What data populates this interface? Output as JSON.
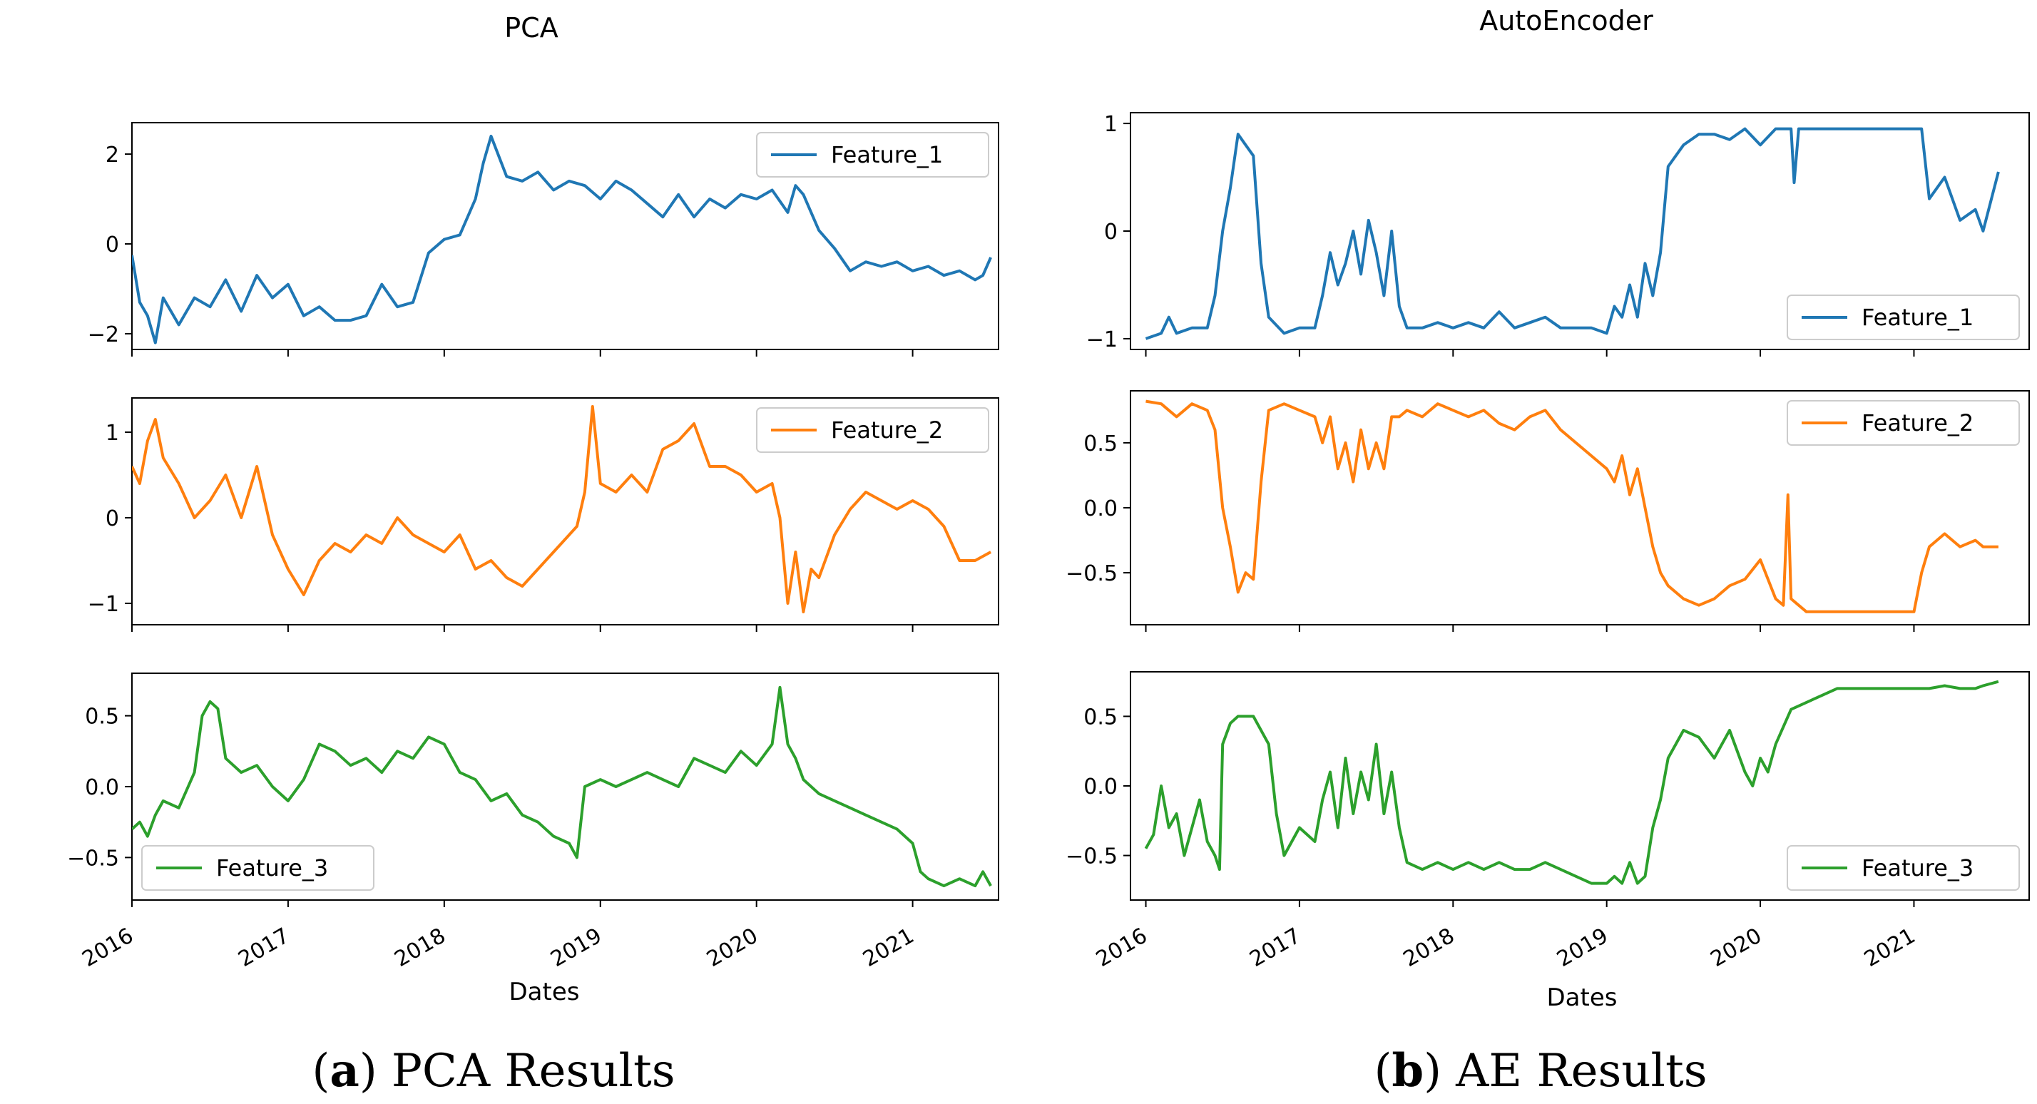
{
  "chart_data": [
    {
      "type": "line",
      "title": "PCA",
      "caption_letter": "a",
      "caption_text": "PCA Results",
      "xlabel": "Dates",
      "x_ticks": [
        "2016",
        "2017",
        "2018",
        "2019",
        "2020",
        "2021"
      ],
      "xlim": [
        2016.0,
        2021.55
      ],
      "subplots": [
        {
          "name": "Feature_1",
          "color": "#1f77b4",
          "ylim": [
            -2.35,
            2.7
          ],
          "yticks": [
            -2,
            0,
            2
          ],
          "ytick_labels": [
            "−2",
            "0",
            "2"
          ],
          "legend_loc": "upper right",
          "x": [
            2016.0,
            2016.05,
            2016.1,
            2016.15,
            2016.2,
            2016.3,
            2016.4,
            2016.5,
            2016.6,
            2016.7,
            2016.8,
            2016.9,
            2017.0,
            2017.1,
            2017.2,
            2017.3,
            2017.4,
            2017.5,
            2017.6,
            2017.7,
            2017.8,
            2017.9,
            2018.0,
            2018.1,
            2018.2,
            2018.25,
            2018.3,
            2018.4,
            2018.5,
            2018.6,
            2018.7,
            2018.8,
            2018.9,
            2019.0,
            2019.1,
            2019.2,
            2019.3,
            2019.4,
            2019.5,
            2019.6,
            2019.7,
            2019.8,
            2019.9,
            2020.0,
            2020.1,
            2020.2,
            2020.25,
            2020.3,
            2020.4,
            2020.5,
            2020.6,
            2020.7,
            2020.8,
            2020.9,
            2021.0,
            2021.1,
            2021.2,
            2021.3,
            2021.4,
            2021.45,
            2021.5
          ],
          "y": [
            -0.25,
            -1.3,
            -1.6,
            -2.2,
            -1.2,
            -1.8,
            -1.2,
            -1.4,
            -0.8,
            -1.5,
            -0.7,
            -1.2,
            -0.9,
            -1.6,
            -1.4,
            -1.7,
            -1.7,
            -1.6,
            -0.9,
            -1.4,
            -1.3,
            -0.2,
            0.1,
            0.2,
            1.0,
            1.8,
            2.4,
            1.5,
            1.4,
            1.6,
            1.2,
            1.4,
            1.3,
            1.0,
            1.4,
            1.2,
            0.9,
            0.6,
            1.1,
            0.6,
            1.0,
            0.8,
            1.1,
            1.0,
            1.2,
            0.7,
            1.3,
            1.1,
            0.3,
            -0.1,
            -0.6,
            -0.4,
            -0.5,
            -0.4,
            -0.6,
            -0.5,
            -0.7,
            -0.6,
            -0.8,
            -0.7,
            -0.3
          ]
        },
        {
          "name": "Feature_2",
          "color": "#ff7f0e",
          "ylim": [
            -1.25,
            1.4
          ],
          "yticks": [
            -1,
            0,
            1
          ],
          "ytick_labels": [
            "−1",
            "0",
            "1"
          ],
          "legend_loc": "upper right",
          "x": [
            2016.0,
            2016.05,
            2016.1,
            2016.15,
            2016.2,
            2016.3,
            2016.4,
            2016.5,
            2016.6,
            2016.7,
            2016.8,
            2016.9,
            2017.0,
            2017.1,
            2017.2,
            2017.3,
            2017.4,
            2017.5,
            2017.6,
            2017.7,
            2017.8,
            2017.9,
            2018.0,
            2018.1,
            2018.2,
            2018.3,
            2018.4,
            2018.5,
            2018.6,
            2018.7,
            2018.8,
            2018.85,
            2018.9,
            2018.95,
            2019.0,
            2019.1,
            2019.2,
            2019.3,
            2019.4,
            2019.5,
            2019.6,
            2019.7,
            2019.8,
            2019.9,
            2020.0,
            2020.1,
            2020.15,
            2020.2,
            2020.25,
            2020.3,
            2020.35,
            2020.4,
            2020.5,
            2020.6,
            2020.7,
            2020.8,
            2020.9,
            2021.0,
            2021.1,
            2021.2,
            2021.3,
            2021.4,
            2021.5
          ],
          "y": [
            0.6,
            0.4,
            0.9,
            1.15,
            0.7,
            0.4,
            0.0,
            0.2,
            0.5,
            0.0,
            0.6,
            -0.2,
            -0.6,
            -0.9,
            -0.5,
            -0.3,
            -0.4,
            -0.2,
            -0.3,
            0.0,
            -0.2,
            -0.3,
            -0.4,
            -0.2,
            -0.6,
            -0.5,
            -0.7,
            -0.8,
            -0.6,
            -0.4,
            -0.2,
            -0.1,
            0.3,
            1.3,
            0.4,
            0.3,
            0.5,
            0.3,
            0.8,
            0.9,
            1.1,
            0.6,
            0.6,
            0.5,
            0.3,
            0.4,
            0.0,
            -1.0,
            -0.4,
            -1.1,
            -0.6,
            -0.7,
            -0.2,
            0.1,
            0.3,
            0.2,
            0.1,
            0.2,
            0.1,
            -0.1,
            -0.5,
            -0.5,
            -0.4
          ]
        },
        {
          "name": "Feature_3",
          "color": "#2ca02c",
          "ylim": [
            -0.8,
            0.8
          ],
          "yticks": [
            -0.5,
            0.0,
            0.5
          ],
          "ytick_labels": [
            "−0.5",
            "0.0",
            "0.5"
          ],
          "legend_loc": "lower left",
          "x": [
            2016.0,
            2016.05,
            2016.1,
            2016.15,
            2016.2,
            2016.3,
            2016.4,
            2016.45,
            2016.5,
            2016.55,
            2016.6,
            2016.7,
            2016.8,
            2016.9,
            2017.0,
            2017.1,
            2017.2,
            2017.3,
            2017.4,
            2017.5,
            2017.6,
            2017.7,
            2017.8,
            2017.9,
            2018.0,
            2018.1,
            2018.2,
            2018.3,
            2018.4,
            2018.5,
            2018.6,
            2018.7,
            2018.8,
            2018.85,
            2018.9,
            2019.0,
            2019.1,
            2019.2,
            2019.3,
            2019.4,
            2019.5,
            2019.6,
            2019.7,
            2019.8,
            2019.9,
            2020.0,
            2020.1,
            2020.15,
            2020.2,
            2020.25,
            2020.3,
            2020.4,
            2020.5,
            2020.6,
            2020.7,
            2020.8,
            2020.9,
            2021.0,
            2021.05,
            2021.1,
            2021.2,
            2021.3,
            2021.4,
            2021.45,
            2021.5
          ],
          "y": [
            -0.3,
            -0.25,
            -0.35,
            -0.2,
            -0.1,
            -0.15,
            0.1,
            0.5,
            0.6,
            0.55,
            0.2,
            0.1,
            0.15,
            0.0,
            -0.1,
            0.05,
            0.3,
            0.25,
            0.15,
            0.2,
            0.1,
            0.25,
            0.2,
            0.35,
            0.3,
            0.1,
            0.05,
            -0.1,
            -0.05,
            -0.2,
            -0.25,
            -0.35,
            -0.4,
            -0.5,
            0.0,
            0.05,
            0.0,
            0.05,
            0.1,
            0.05,
            0.0,
            0.2,
            0.15,
            0.1,
            0.25,
            0.15,
            0.3,
            0.7,
            0.3,
            0.2,
            0.05,
            -0.05,
            -0.1,
            -0.15,
            -0.2,
            -0.25,
            -0.3,
            -0.4,
            -0.6,
            -0.65,
            -0.7,
            -0.65,
            -0.7,
            -0.6,
            -0.7
          ]
        }
      ]
    },
    {
      "type": "line",
      "title": "AutoEncoder",
      "caption_letter": "b",
      "caption_text": "AE Results",
      "xlabel": "Dates",
      "x_ticks": [
        "2016",
        "2017",
        "2018",
        "2019",
        "2020",
        "2021"
      ],
      "xlim": [
        2015.9,
        2021.75
      ],
      "subplots": [
        {
          "name": "Feature_1",
          "color": "#1f77b4",
          "ylim": [
            -1.1,
            1.1
          ],
          "yticks": [
            -1,
            0,
            1
          ],
          "ytick_labels": [
            "−1",
            "0",
            "1"
          ],
          "legend_loc": "lower right",
          "x": [
            2016.0,
            2016.1,
            2016.15,
            2016.2,
            2016.3,
            2016.4,
            2016.45,
            2016.5,
            2016.55,
            2016.6,
            2016.65,
            2016.7,
            2016.75,
            2016.8,
            2016.9,
            2017.0,
            2017.1,
            2017.15,
            2017.2,
            2017.25,
            2017.3,
            2017.35,
            2017.4,
            2017.45,
            2017.5,
            2017.55,
            2017.6,
            2017.65,
            2017.7,
            2017.8,
            2017.9,
            2018.0,
            2018.1,
            2018.2,
            2018.3,
            2018.4,
            2018.5,
            2018.6,
            2018.7,
            2018.8,
            2018.9,
            2019.0,
            2019.05,
            2019.1,
            2019.15,
            2019.2,
            2019.25,
            2019.3,
            2019.35,
            2019.4,
            2019.5,
            2019.6,
            2019.7,
            2019.8,
            2019.9,
            2020.0,
            2020.1,
            2020.2,
            2020.22,
            2020.25,
            2020.3,
            2020.4,
            2020.5,
            2020.6,
            2020.7,
            2020.8,
            2020.9,
            2021.0,
            2021.05,
            2021.1,
            2021.2,
            2021.3,
            2021.4,
            2021.45,
            2021.55
          ],
          "y": [
            -1.0,
            -0.95,
            -0.8,
            -0.95,
            -0.9,
            -0.9,
            -0.6,
            0.0,
            0.4,
            0.9,
            0.8,
            0.7,
            -0.3,
            -0.8,
            -0.95,
            -0.9,
            -0.9,
            -0.6,
            -0.2,
            -0.5,
            -0.3,
            0.0,
            -0.4,
            0.1,
            -0.2,
            -0.6,
            0.0,
            -0.7,
            -0.9,
            -0.9,
            -0.85,
            -0.9,
            -0.85,
            -0.9,
            -0.75,
            -0.9,
            -0.85,
            -0.8,
            -0.9,
            -0.9,
            -0.9,
            -0.95,
            -0.7,
            -0.8,
            -0.5,
            -0.8,
            -0.3,
            -0.6,
            -0.2,
            0.6,
            0.8,
            0.9,
            0.9,
            0.85,
            0.95,
            0.8,
            0.95,
            0.95,
            0.45,
            0.95,
            0.95,
            0.95,
            0.95,
            0.95,
            0.95,
            0.95,
            0.95,
            0.95,
            0.95,
            0.3,
            0.5,
            0.1,
            0.2,
            0.0,
            0.55
          ]
        },
        {
          "name": "Feature_2",
          "color": "#ff7f0e",
          "ylim": [
            -0.9,
            0.9
          ],
          "yticks": [
            -0.5,
            0.0,
            0.5
          ],
          "ytick_labels": [
            "−0.5",
            "0.0",
            "0.5"
          ],
          "legend_loc": "upper right",
          "x": [
            2016.0,
            2016.1,
            2016.15,
            2016.2,
            2016.3,
            2016.4,
            2016.45,
            2016.5,
            2016.55,
            2016.6,
            2016.65,
            2016.7,
            2016.75,
            2016.8,
            2016.9,
            2017.0,
            2017.1,
            2017.15,
            2017.2,
            2017.25,
            2017.3,
            2017.35,
            2017.4,
            2017.45,
            2017.5,
            2017.55,
            2017.6,
            2017.65,
            2017.7,
            2017.8,
            2017.9,
            2018.0,
            2018.1,
            2018.2,
            2018.3,
            2018.4,
            2018.5,
            2018.6,
            2018.7,
            2018.8,
            2018.9,
            2019.0,
            2019.05,
            2019.1,
            2019.15,
            2019.2,
            2019.25,
            2019.3,
            2019.35,
            2019.4,
            2019.5,
            2019.6,
            2019.7,
            2019.8,
            2019.9,
            2020.0,
            2020.1,
            2020.15,
            2020.18,
            2020.2,
            2020.25,
            2020.3,
            2020.4,
            2020.5,
            2020.6,
            2020.7,
            2020.8,
            2020.9,
            2021.0,
            2021.05,
            2021.1,
            2021.2,
            2021.3,
            2021.4,
            2021.45,
            2021.55
          ],
          "y": [
            0.82,
            0.8,
            0.75,
            0.7,
            0.8,
            0.75,
            0.6,
            0.0,
            -0.3,
            -0.65,
            -0.5,
            -0.55,
            0.2,
            0.75,
            0.8,
            0.75,
            0.7,
            0.5,
            0.7,
            0.3,
            0.5,
            0.2,
            0.6,
            0.3,
            0.5,
            0.3,
            0.7,
            0.7,
            0.75,
            0.7,
            0.8,
            0.75,
            0.7,
            0.75,
            0.65,
            0.6,
            0.7,
            0.75,
            0.6,
            0.5,
            0.4,
            0.3,
            0.2,
            0.4,
            0.1,
            0.3,
            0.0,
            -0.3,
            -0.5,
            -0.6,
            -0.7,
            -0.75,
            -0.7,
            -0.6,
            -0.55,
            -0.4,
            -0.7,
            -0.75,
            0.1,
            -0.7,
            -0.75,
            -0.8,
            -0.8,
            -0.8,
            -0.8,
            -0.8,
            -0.8,
            -0.8,
            -0.8,
            -0.5,
            -0.3,
            -0.2,
            -0.3,
            -0.25,
            -0.3,
            -0.3
          ]
        },
        {
          "name": "Feature_3",
          "color": "#2ca02c",
          "ylim": [
            -0.82,
            0.82
          ],
          "yticks": [
            -0.5,
            0.0,
            0.5
          ],
          "ytick_labels": [
            "−0.5",
            "0.0",
            "0.5"
          ],
          "legend_loc": "lower right",
          "x": [
            2016.0,
            2016.05,
            2016.1,
            2016.15,
            2016.2,
            2016.25,
            2016.3,
            2016.35,
            2016.4,
            2016.45,
            2016.48,
            2016.5,
            2016.55,
            2016.6,
            2016.7,
            2016.8,
            2016.85,
            2016.9,
            2017.0,
            2017.1,
            2017.15,
            2017.2,
            2017.25,
            2017.3,
            2017.35,
            2017.4,
            2017.45,
            2017.5,
            2017.55,
            2017.6,
            2017.65,
            2017.7,
            2017.8,
            2017.9,
            2018.0,
            2018.1,
            2018.2,
            2018.3,
            2018.4,
            2018.5,
            2018.6,
            2018.7,
            2018.8,
            2018.9,
            2019.0,
            2019.05,
            2019.1,
            2019.15,
            2019.2,
            2019.25,
            2019.3,
            2019.35,
            2019.4,
            2019.5,
            2019.6,
            2019.7,
            2019.8,
            2019.9,
            2019.95,
            2020.0,
            2020.05,
            2020.1,
            2020.2,
            2020.3,
            2020.4,
            2020.5,
            2020.6,
            2020.7,
            2020.8,
            2020.9,
            2021.0,
            2021.1,
            2021.2,
            2021.3,
            2021.4,
            2021.45,
            2021.55
          ],
          "y": [
            -0.45,
            -0.35,
            0.0,
            -0.3,
            -0.2,
            -0.5,
            -0.3,
            -0.1,
            -0.4,
            -0.5,
            -0.6,
            0.3,
            0.45,
            0.5,
            0.5,
            0.3,
            -0.2,
            -0.5,
            -0.3,
            -0.4,
            -0.1,
            0.1,
            -0.3,
            0.2,
            -0.2,
            0.1,
            -0.1,
            0.3,
            -0.2,
            0.1,
            -0.3,
            -0.55,
            -0.6,
            -0.55,
            -0.6,
            -0.55,
            -0.6,
            -0.55,
            -0.6,
            -0.6,
            -0.55,
            -0.6,
            -0.65,
            -0.7,
            -0.7,
            -0.65,
            -0.7,
            -0.55,
            -0.7,
            -0.65,
            -0.3,
            -0.1,
            0.2,
            0.4,
            0.35,
            0.2,
            0.4,
            0.1,
            0.0,
            0.2,
            0.1,
            0.3,
            0.55,
            0.6,
            0.65,
            0.7,
            0.7,
            0.7,
            0.7,
            0.7,
            0.7,
            0.7,
            0.72,
            0.7,
            0.7,
            0.72,
            0.75
          ]
        }
      ]
    }
  ]
}
